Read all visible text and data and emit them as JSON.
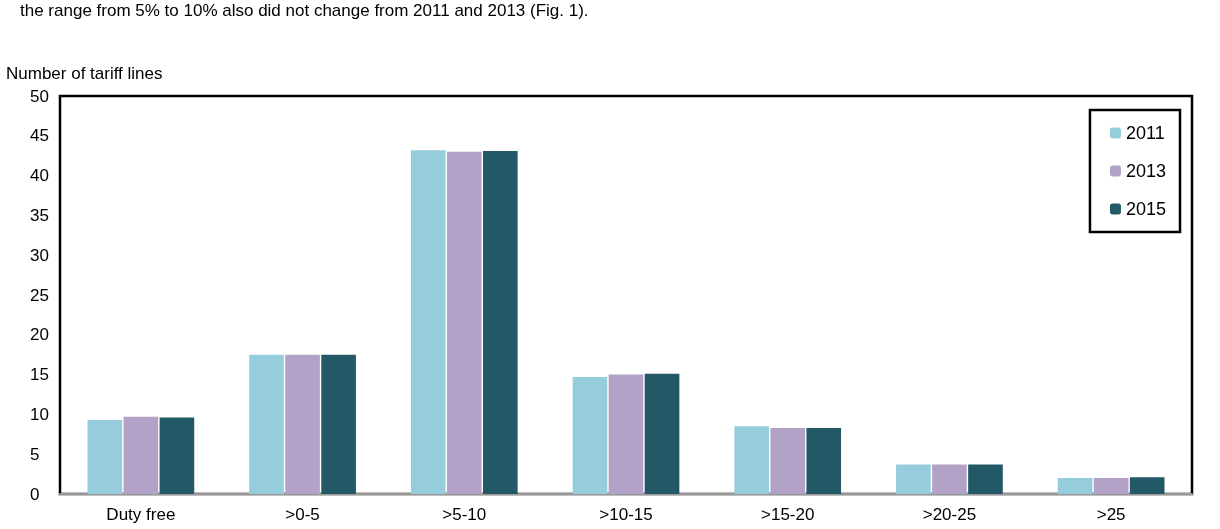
{
  "chart_data": {
    "type": "bar",
    "ylabel": "Number of tariff lines",
    "annotations": [
      "the range from 5% to 10% also did not change from 2011 and 2013 (Fig. 1)."
    ],
    "categories": [
      "Duty free",
      ">0-5",
      ">5-10",
      ">10-15",
      ">15-20",
      ">20-25",
      ">25"
    ],
    "series": [
      {
        "name": "2011",
        "color": "#96cddd",
        "values": [
          9.3,
          17.5,
          43.2,
          14.7,
          8.5,
          3.7,
          2.0
        ]
      },
      {
        "name": "2013",
        "color": "#b3a2c8",
        "values": [
          9.7,
          17.5,
          43.0,
          15.0,
          8.3,
          3.7,
          2.0
        ]
      },
      {
        "name": "2015",
        "color": "#235967",
        "values": [
          9.6,
          17.5,
          43.1,
          15.1,
          8.3,
          3.7,
          2.1
        ]
      }
    ],
    "ylim": [
      0,
      50
    ],
    "yticks": [
      0,
      5,
      10,
      15,
      20,
      25,
      30,
      35,
      40,
      45,
      50
    ],
    "grid": false,
    "legend": "top right"
  }
}
